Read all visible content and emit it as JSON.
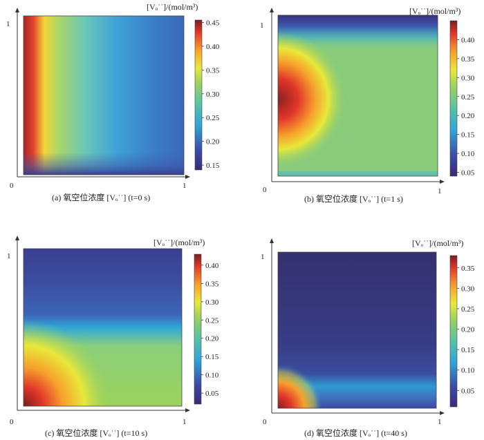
{
  "chart_data": [
    {
      "type": "heatmap",
      "caption": "(a) 氧空位浓度 [Vₒ˙˙] (t=0 s)",
      "colorbar_label": "[Vₒ˙˙]/(mol/m³)",
      "x_ticks": [
        "0",
        "1"
      ],
      "y_ticks": [
        "1"
      ],
      "xlim": [
        0,
        1
      ],
      "ylim": [
        0,
        1
      ],
      "colorbar_range": [
        0.14,
        0.455
      ],
      "colorbar_ticks": [
        "0.15",
        "0.20",
        "0.25",
        "0.30",
        "0.35",
        "0.40",
        "0.45"
      ],
      "field": "high (~0.45) along left edge x<0.1, falling toward ~0.14 at right edge; low band near bottom edge"
    },
    {
      "type": "heatmap",
      "caption": "(b) 氧空位浓度 [Vₒ˙˙] (t=1 s)",
      "colorbar_label": "[Vₒ˙˙]/(mol/m³)",
      "x_ticks": [
        "0",
        "1"
      ],
      "y_ticks": [
        "1"
      ],
      "xlim": [
        0,
        1
      ],
      "ylim": [
        0,
        1
      ],
      "colorbar_range": [
        0.04,
        0.45
      ],
      "colorbar_ticks": [
        "0.05",
        "0.10",
        "0.15",
        "0.20",
        "0.25",
        "0.30",
        "0.35",
        "0.40"
      ],
      "field": "peak ~0.45 at left edge mid-height, background ~0.22, low ~0.05 along top edge"
    },
    {
      "type": "heatmap",
      "caption": "(c) 氧空位浓度 [Vₒ˙˙] (t=10 s)",
      "colorbar_label": "[Vₒ˙˙]/(mol/m³)",
      "x_ticks": [
        "0",
        "1"
      ],
      "y_ticks": [
        "1"
      ],
      "xlim": [
        0,
        1
      ],
      "ylim": [
        0,
        1
      ],
      "colorbar_range": [
        0.02,
        0.43
      ],
      "colorbar_ticks": [
        "0.05",
        "0.10",
        "0.15",
        "0.20",
        "0.25",
        "0.30",
        "0.35",
        "0.40"
      ],
      "field": "peak ~0.43 at bottom-left corner, band ~0.2 across lower half, upper half ~0.05"
    },
    {
      "type": "heatmap",
      "caption": "(d) 氧空位浓度 [Vₒ˙˙] (t=40 s)",
      "colorbar_label": "[Vₒ˙˙]/(mol/m³)",
      "x_ticks": [
        "0",
        "1"
      ],
      "y_ticks": [
        "1"
      ],
      "xlim": [
        0,
        1
      ],
      "ylim": [
        0,
        1
      ],
      "colorbar_range": [
        0.01,
        0.38
      ],
      "colorbar_ticks": [
        "0.05",
        "0.10",
        "0.15",
        "0.20",
        "0.25",
        "0.30",
        "0.35"
      ],
      "field": "peak ~0.38 at bottom-left corner, thin band ~0.13 near bottom, rest ~0.02"
    }
  ]
}
